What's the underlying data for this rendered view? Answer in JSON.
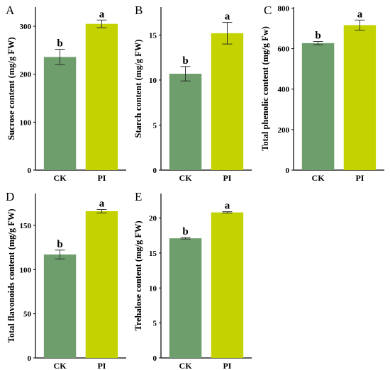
{
  "colors": {
    "CK": "#6e9e6c",
    "PI": "#c4d300",
    "axis": "#000000"
  },
  "chart_data": [
    {
      "panel": "A",
      "type": "bar",
      "categories": [
        "CK",
        "PI"
      ],
      "values": [
        236,
        305
      ],
      "errors": [
        16,
        8
      ],
      "significance": [
        "b",
        "a"
      ],
      "ylabel": "Sucrose content (mg/g FW)",
      "ylim": [
        0,
        340
      ],
      "yticks": [
        0,
        100,
        200,
        300
      ]
    },
    {
      "panel": "B",
      "type": "bar",
      "categories": [
        "CK",
        "PI"
      ],
      "values": [
        10.7,
        15.2
      ],
      "errors": [
        0.8,
        1.2
      ],
      "significance": [
        "b",
        "a"
      ],
      "ylabel": "Starch content (mg/g FW)",
      "ylim": [
        0,
        18.1
      ],
      "yticks": [
        0,
        5,
        10,
        15
      ]
    },
    {
      "panel": "C",
      "type": "bar",
      "categories": [
        "CK",
        "PI"
      ],
      "values": [
        627,
        716
      ],
      "errors": [
        8,
        25
      ],
      "significance": [
        "b",
        "a"
      ],
      "ylabel": "Total phenolic content (mg/g Fw)",
      "ylim": [
        0,
        805
      ],
      "yticks": [
        0,
        200,
        400,
        600,
        800
      ]
    },
    {
      "panel": "D",
      "type": "bar",
      "categories": [
        "CK",
        "PI"
      ],
      "values": [
        117,
        166
      ],
      "errors": [
        5,
        2
      ],
      "significance": [
        "b",
        "a"
      ],
      "ylabel": "Total flavonoids content (mg/g FW)",
      "ylim": [
        0,
        186
      ],
      "yticks": [
        0,
        50,
        100,
        150
      ]
    },
    {
      "panel": "E",
      "type": "bar",
      "categories": [
        "CK",
        "PI"
      ],
      "values": [
        17.1,
        20.8
      ],
      "errors": [
        0.1,
        0.1
      ],
      "significance": [
        "b",
        "a"
      ],
      "ylabel": "Trehalose content (mg/g FW)",
      "ylim": [
        0,
        23.5
      ],
      "yticks": [
        0,
        5,
        10,
        15,
        20
      ]
    }
  ]
}
